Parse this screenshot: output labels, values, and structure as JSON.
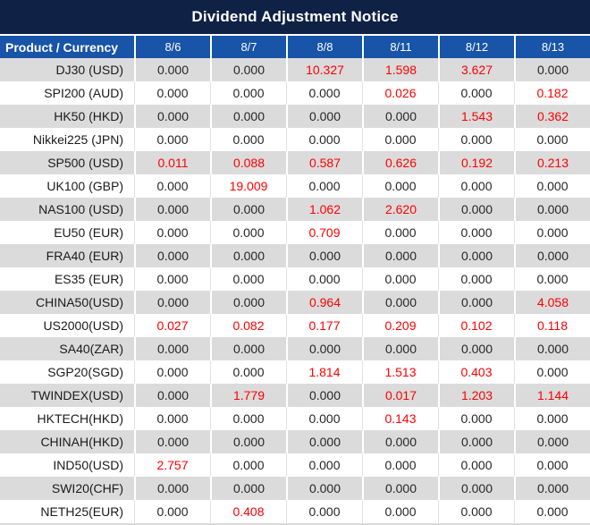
{
  "title": "Dividend Adjustment Notice",
  "colors": {
    "title_bg": "#0f2145",
    "header_bg": "#1854a8",
    "gray_row_bg": "#dbdbdb",
    "red_value": "#fe0000",
    "black_value": "#262626"
  },
  "table": {
    "product_header": "Product / Currency",
    "dates": [
      "8/6",
      "8/7",
      "8/8",
      "8/11",
      "8/12",
      "8/13"
    ],
    "rows": [
      {
        "product": "DJ30 (USD)",
        "values": [
          "0.000",
          "0.000",
          "10.327",
          "1.598",
          "3.627",
          "0.000"
        ],
        "red": [
          false,
          false,
          true,
          true,
          true,
          false
        ]
      },
      {
        "product": "SPI200 (AUD)",
        "values": [
          "0.000",
          "0.000",
          "0.000",
          "0.026",
          "0.000",
          "0.182"
        ],
        "red": [
          false,
          false,
          false,
          true,
          false,
          true
        ]
      },
      {
        "product": "HK50 (HKD)",
        "values": [
          "0.000",
          "0.000",
          "0.000",
          "0.000",
          "1.543",
          "0.362"
        ],
        "red": [
          false,
          false,
          false,
          false,
          true,
          true
        ]
      },
      {
        "product": "Nikkei225 (JPN)",
        "values": [
          "0.000",
          "0.000",
          "0.000",
          "0.000",
          "0.000",
          "0.000"
        ],
        "red": [
          false,
          false,
          false,
          false,
          false,
          false
        ]
      },
      {
        "product": "SP500 (USD)",
        "values": [
          "0.011",
          "0.088",
          "0.587",
          "0.626",
          "0.192",
          "0.213"
        ],
        "red": [
          true,
          true,
          true,
          true,
          true,
          true
        ]
      },
      {
        "product": "UK100 (GBP)",
        "values": [
          "0.000",
          "19.009",
          "0.000",
          "0.000",
          "0.000",
          "0.000"
        ],
        "red": [
          false,
          true,
          false,
          false,
          false,
          false
        ]
      },
      {
        "product": "NAS100 (USD)",
        "values": [
          "0.000",
          "0.000",
          "1.062",
          "2.620",
          "0.000",
          "0.000"
        ],
        "red": [
          false,
          false,
          true,
          true,
          false,
          false
        ]
      },
      {
        "product": "EU50 (EUR)",
        "values": [
          "0.000",
          "0.000",
          "0.709",
          "0.000",
          "0.000",
          "0.000"
        ],
        "red": [
          false,
          false,
          true,
          false,
          false,
          false
        ]
      },
      {
        "product": "FRA40 (EUR)",
        "values": [
          "0.000",
          "0.000",
          "0.000",
          "0.000",
          "0.000",
          "0.000"
        ],
        "red": [
          false,
          false,
          false,
          false,
          false,
          false
        ]
      },
      {
        "product": "ES35 (EUR)",
        "values": [
          "0.000",
          "0.000",
          "0.000",
          "0.000",
          "0.000",
          "0.000"
        ],
        "red": [
          false,
          false,
          false,
          false,
          false,
          false
        ]
      },
      {
        "product": "CHINA50(USD)",
        "values": [
          "0.000",
          "0.000",
          "0.964",
          "0.000",
          "0.000",
          "4.058"
        ],
        "red": [
          false,
          false,
          true,
          false,
          false,
          true
        ]
      },
      {
        "product": "US2000(USD)",
        "values": [
          "0.027",
          "0.082",
          "0.177",
          "0.209",
          "0.102",
          "0.118"
        ],
        "red": [
          true,
          true,
          true,
          true,
          true,
          true
        ]
      },
      {
        "product": "SA40(ZAR)",
        "values": [
          "0.000",
          "0.000",
          "0.000",
          "0.000",
          "0.000",
          "0.000"
        ],
        "red": [
          false,
          false,
          false,
          false,
          false,
          false
        ]
      },
      {
        "product": "SGP20(SGD)",
        "values": [
          "0.000",
          "0.000",
          "1.814",
          "1.513",
          "0.403",
          "0.000"
        ],
        "red": [
          false,
          false,
          true,
          true,
          true,
          false
        ]
      },
      {
        "product": "TWINDEX(USD)",
        "values": [
          "0.000",
          "1.779",
          "0.000",
          "0.017",
          "1.203",
          "1.144"
        ],
        "red": [
          false,
          true,
          false,
          true,
          true,
          true
        ]
      },
      {
        "product": "HKTECH(HKD)",
        "values": [
          "0.000",
          "0.000",
          "0.000",
          "0.143",
          "0.000",
          "0.000"
        ],
        "red": [
          false,
          false,
          false,
          true,
          false,
          false
        ]
      },
      {
        "product": "CHINAH(HKD)",
        "values": [
          "0.000",
          "0.000",
          "0.000",
          "0.000",
          "0.000",
          "0.000"
        ],
        "red": [
          false,
          false,
          false,
          false,
          false,
          false
        ]
      },
      {
        "product": "IND50(USD)",
        "values": [
          "2.757",
          "0.000",
          "0.000",
          "0.000",
          "0.000",
          "0.000"
        ],
        "red": [
          true,
          false,
          false,
          false,
          false,
          false
        ]
      },
      {
        "product": "SWI20(CHF)",
        "values": [
          "0.000",
          "0.000",
          "0.000",
          "0.000",
          "0.000",
          "0.000"
        ],
        "red": [
          false,
          false,
          false,
          false,
          false,
          false
        ]
      },
      {
        "product": "NETH25(EUR)",
        "values": [
          "0.000",
          "0.408",
          "0.000",
          "0.000",
          "0.000",
          "0.000"
        ],
        "red": [
          false,
          true,
          false,
          false,
          false,
          false
        ]
      }
    ]
  }
}
